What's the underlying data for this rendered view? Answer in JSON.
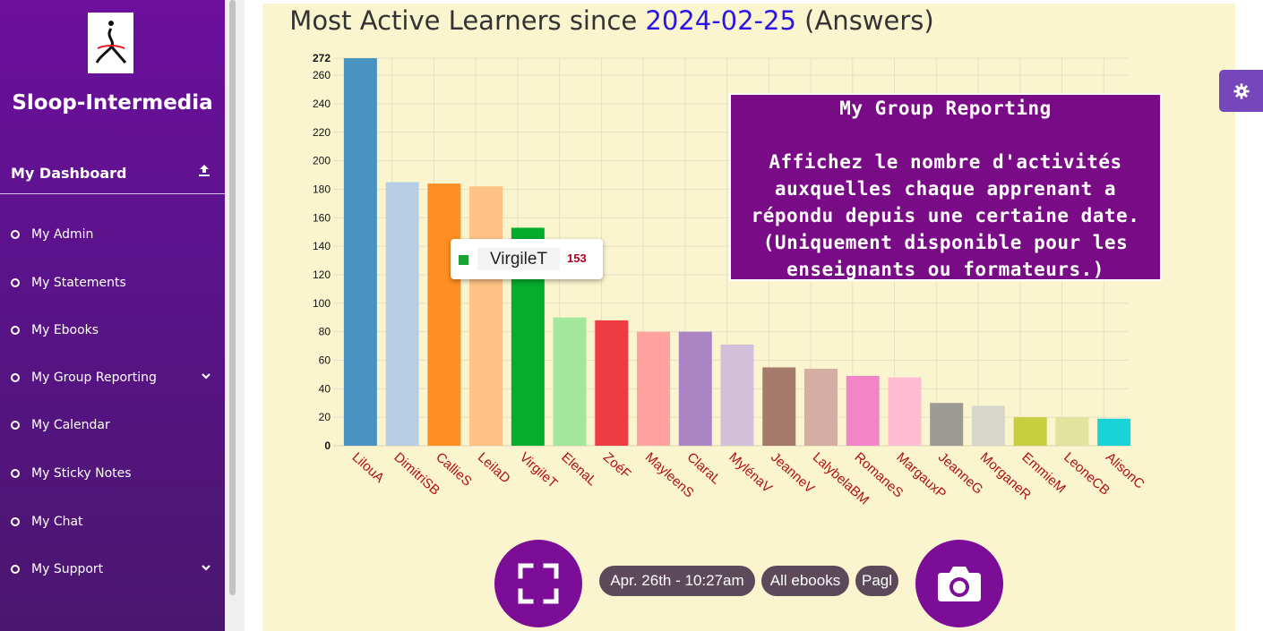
{
  "sidebar": {
    "brand": "Sloop-Intermedia",
    "dashboard_label": "My Dashboard",
    "items": [
      {
        "label": "My Admin",
        "has_submenu": false
      },
      {
        "label": "My Statements",
        "has_submenu": false
      },
      {
        "label": "My Ebooks",
        "has_submenu": false
      },
      {
        "label": "My Group Reporting",
        "has_submenu": true
      },
      {
        "label": "My Calendar",
        "has_submenu": false
      },
      {
        "label": "My Sticky Notes",
        "has_submenu": false
      },
      {
        "label": "My Chat",
        "has_submenu": false
      },
      {
        "label": "My Support",
        "has_submenu": true
      }
    ]
  },
  "header": {
    "title_prefix": "Most Active Learners since",
    "title_date": "2024-02-25",
    "title_suffix": "(Answers)"
  },
  "info_box": {
    "title": "My Group Reporting",
    "body": "Affichez le nombre d'activités auxquelles chaque apprenant a répondu depuis une certaine date. (Uniquement disponible pour les enseignants ou formateurs.)"
  },
  "tooltip": {
    "name": "VirgileT",
    "value": "153",
    "color": "#18a232"
  },
  "footer": {
    "date_pill": "Apr. 26th - 10:27am",
    "ebooks_pill": "All ebooks",
    "page_pill": "Pagl"
  },
  "colors": {
    "sidebar": "#6c0f9d",
    "accent_purple": "#7c0d96",
    "panel_bg": "#fbf5cf",
    "title_date": "#2a14e6",
    "category_label": "#b01010"
  },
  "icons": {
    "fullscreen": "fullscreen-icon",
    "camera": "camera-icon",
    "settings": "gear-icon",
    "dashboard_toggle": "upload-icon",
    "submenu": "chevron-down-icon"
  },
  "chart_data": {
    "type": "bar",
    "categories": [
      "LilouA",
      "DimitriSB",
      "CallieS",
      "LeilaD",
      "VirgileT",
      "ElenaL",
      "ZoéF",
      "MayleenS",
      "ClaraL",
      "MylénaV",
      "JeanneV",
      "LalybelaBM",
      "RomaneS",
      "MargauxP",
      "JeanneG",
      "MorganeR",
      "EmmieM",
      "LeoneCB",
      "AlisonC"
    ],
    "values": [
      272,
      185,
      184,
      182,
      153,
      90,
      88,
      80,
      80,
      71,
      55,
      54,
      49,
      48,
      30,
      28,
      20,
      20,
      19
    ],
    "colors": [
      "#4993c0",
      "#b7cfe4",
      "#ff8f22",
      "#ffc284",
      "#06ac2d",
      "#a3e79d",
      "#ef3c43",
      "#ffa2a0",
      "#ab84c4",
      "#d2bfd9",
      "#a47b6b",
      "#d6ada3",
      "#f185c5",
      "#ffbdd3",
      "#9b9b93",
      "#d6d6cc",
      "#c7ce3e",
      "#e0e49e",
      "#1ad3d8"
    ],
    "y_ticks": [
      0,
      20,
      40,
      60,
      80,
      100,
      120,
      140,
      160,
      180,
      200,
      220,
      240,
      260,
      272
    ],
    "ylim": [
      0,
      272
    ],
    "grid": true,
    "title": "Most Active Learners since 2024-02-25 (Answers)"
  }
}
